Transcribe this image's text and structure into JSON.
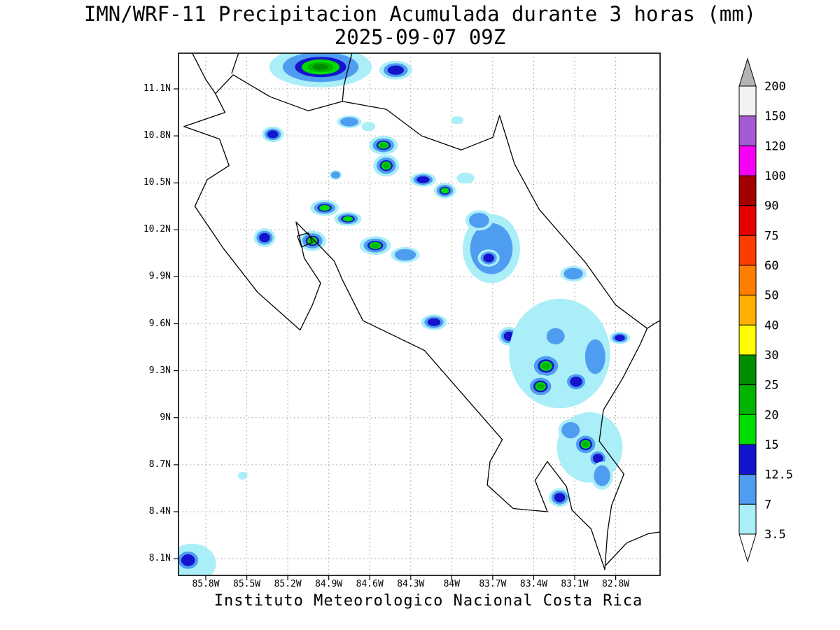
{
  "title": {
    "line1": "IMN/WRF-11 Precipitacion Acumulada durante 3 horas (mm)",
    "line2": "2025-09-07 09Z"
  },
  "caption": "Instituto Meteorologico Nacional Costa Rica",
  "axes": {
    "lat_ticks": [
      "11.1N",
      "10.8N",
      "10.5N",
      "10.2N",
      "9.9N",
      "9.6N",
      "9.3N",
      "9N",
      "8.7N",
      "8.4N",
      "8.1N"
    ],
    "lon_ticks": [
      "85.8W",
      "85.5W",
      "85.2W",
      "84.9W",
      "84.6W",
      "84.3W",
      "84W",
      "83.7W",
      "83.4W",
      "83.1W",
      "82.8W"
    ]
  },
  "colorbar": {
    "labels": [
      "200",
      "150",
      "120",
      "100",
      "90",
      "75",
      "60",
      "50",
      "40",
      "30",
      "25",
      "20",
      "15",
      "12.5",
      "7",
      "3.5"
    ],
    "band_colors_top_to_bottom": [
      "#f2f2f2",
      "#a45ad2",
      "#f500f5",
      "#a50000",
      "#e60000",
      "#ff3c00",
      "#ff7d00",
      "#ffaf00",
      "#ffff00",
      "#008c00",
      "#00b400",
      "#00dc00",
      "#1414cd",
      "#4f9df0",
      "#aaeef8"
    ],
    "over_arrow_color": "#b4b4b4",
    "under_arrow_color": "#ffffff"
  },
  "chart_data": {
    "type": "heatmap",
    "subtype": "precipitation-map",
    "region": "Costa Rica",
    "title": "IMN/WRF-11 Precipitacion Acumulada durante 3 horas (mm)",
    "valid_time": "2025-09-07 09Z",
    "units": "mm",
    "accumulation_hours": 3,
    "grid": "dotted",
    "legend_position": "right",
    "lon_range": [
      -86.0,
      -82.475
    ],
    "lat_range": [
      7.993,
      11.328
    ],
    "lat_tick_values": [
      11.1,
      10.8,
      10.5,
      10.2,
      9.9,
      9.6,
      9.3,
      9.0,
      8.7,
      8.4,
      8.1
    ],
    "lon_tick_values": [
      -85.8,
      -85.5,
      -85.2,
      -84.9,
      -84.6,
      -84.3,
      -84.0,
      -83.7,
      -83.4,
      -83.1,
      -82.8
    ],
    "levels_mm": [
      3.5,
      7,
      12.5,
      15,
      20,
      25,
      30,
      40,
      50,
      60,
      75,
      90,
      100,
      120,
      150,
      200
    ],
    "level_colors": {
      "3.5": "#aaeef8",
      "7": "#4f9df0",
      "12.5": "#1414cd",
      "15": "#00dc00",
      "20": "#00b400",
      "25": "#008c00",
      "30": "#ffff00",
      "40": "#ffaf00",
      "50": "#ff7d00",
      "60": "#ff3c00",
      "75": "#e60000",
      "90": "#a50000",
      "100": "#f500f5",
      "120": "#a45ad2",
      "150": "#f2f2f2",
      "200": "#b4b4b4"
    },
    "precip_cells": [
      {
        "lon": -84.96,
        "lat": 11.24,
        "w": 0.75,
        "h": 0.26,
        "max": 25
      },
      {
        "lon": -84.41,
        "lat": 11.22,
        "w": 0.24,
        "h": 0.12,
        "max": 14
      },
      {
        "lon": -85.31,
        "lat": 10.81,
        "w": 0.16,
        "h": 0.1,
        "max": 14
      },
      {
        "lon": -84.75,
        "lat": 10.89,
        "w": 0.18,
        "h": 0.08,
        "max": 8
      },
      {
        "lon": -84.61,
        "lat": 10.86,
        "w": 0.1,
        "h": 0.06,
        "max": 5
      },
      {
        "lon": -84.5,
        "lat": 10.74,
        "w": 0.21,
        "h": 0.12,
        "max": 20
      },
      {
        "lon": -84.48,
        "lat": 10.61,
        "w": 0.19,
        "h": 0.14,
        "max": 22
      },
      {
        "lon": -84.85,
        "lat": 10.55,
        "w": 0.09,
        "h": 0.06,
        "max": 8
      },
      {
        "lon": -84.21,
        "lat": 10.52,
        "w": 0.19,
        "h": 0.09,
        "max": 14
      },
      {
        "lon": -84.05,
        "lat": 10.45,
        "w": 0.16,
        "h": 0.1,
        "max": 18
      },
      {
        "lon": -83.9,
        "lat": 10.53,
        "w": 0.13,
        "h": 0.07,
        "max": 6
      },
      {
        "lon": -84.93,
        "lat": 10.34,
        "w": 0.21,
        "h": 0.1,
        "max": 18
      },
      {
        "lon": -84.76,
        "lat": 10.27,
        "w": 0.2,
        "h": 0.09,
        "max": 18
      },
      {
        "lon": -85.37,
        "lat": 10.15,
        "w": 0.16,
        "h": 0.12,
        "max": 13
      },
      {
        "lon": -85.02,
        "lat": 10.13,
        "w": 0.2,
        "h": 0.13,
        "max": 20
      },
      {
        "lon": -84.56,
        "lat": 10.1,
        "w": 0.23,
        "h": 0.12,
        "max": 20
      },
      {
        "lon": -84.34,
        "lat": 10.04,
        "w": 0.21,
        "h": 0.1,
        "max": 10
      },
      {
        "lon": -83.71,
        "lat": 10.08,
        "w": 0.42,
        "h": 0.44,
        "max": 10
      },
      {
        "lon": -83.73,
        "lat": 10.02,
        "w": 0.16,
        "h": 0.11,
        "max": 14
      },
      {
        "lon": -83.8,
        "lat": 10.26,
        "w": 0.2,
        "h": 0.13,
        "max": 8
      },
      {
        "lon": -83.11,
        "lat": 9.92,
        "w": 0.19,
        "h": 0.1,
        "max": 9
      },
      {
        "lon": -84.13,
        "lat": 9.61,
        "w": 0.19,
        "h": 0.1,
        "max": 14
      },
      {
        "lon": -83.58,
        "lat": 9.52,
        "w": 0.16,
        "h": 0.12,
        "max": 14
      },
      {
        "lon": -82.77,
        "lat": 9.51,
        "w": 0.15,
        "h": 0.08,
        "max": 13
      },
      {
        "lon": -83.21,
        "lat": 9.41,
        "w": 0.74,
        "h": 0.7,
        "max": 5
      },
      {
        "lon": -83.31,
        "lat": 9.33,
        "w": 0.24,
        "h": 0.17,
        "max": 20
      },
      {
        "lon": -83.35,
        "lat": 9.2,
        "w": 0.21,
        "h": 0.15,
        "max": 22
      },
      {
        "lon": -83.09,
        "lat": 9.23,
        "w": 0.18,
        "h": 0.13,
        "max": 14
      },
      {
        "lon": -83.24,
        "lat": 9.52,
        "w": 0.18,
        "h": 0.14,
        "max": 10
      },
      {
        "lon": -82.95,
        "lat": 9.39,
        "w": 0.2,
        "h": 0.3,
        "max": 8
      },
      {
        "lon": -82.99,
        "lat": 8.81,
        "w": 0.48,
        "h": 0.45,
        "max": 5
      },
      {
        "lon": -83.02,
        "lat": 8.83,
        "w": 0.19,
        "h": 0.15,
        "max": 22
      },
      {
        "lon": -82.93,
        "lat": 8.74,
        "w": 0.15,
        "h": 0.12,
        "max": 14
      },
      {
        "lon": -83.13,
        "lat": 8.92,
        "w": 0.18,
        "h": 0.14,
        "max": 10
      },
      {
        "lon": -82.9,
        "lat": 8.63,
        "w": 0.16,
        "h": 0.18,
        "max": 8
      },
      {
        "lon": -83.21,
        "lat": 8.49,
        "w": 0.16,
        "h": 0.12,
        "max": 14
      },
      {
        "lon": -85.9,
        "lat": 8.07,
        "w": 0.35,
        "h": 0.25,
        "max": 5
      },
      {
        "lon": -85.93,
        "lat": 8.09,
        "w": 0.2,
        "h": 0.15,
        "max": 14
      },
      {
        "lon": -85.53,
        "lat": 8.63,
        "w": 0.07,
        "h": 0.05,
        "max": 4
      },
      {
        "lon": -83.96,
        "lat": 10.9,
        "w": 0.09,
        "h": 0.05,
        "max": 4
      }
    ],
    "coastlines": [
      {
        "name": "costa-rica",
        "closed": true,
        "points": [
          [
            -85.73,
            11.07
          ],
          [
            -85.6,
            11.19
          ],
          [
            -85.33,
            11.05
          ],
          [
            -85.05,
            10.96
          ],
          [
            -84.8,
            11.02
          ],
          [
            -84.48,
            10.97
          ],
          [
            -84.22,
            10.8
          ],
          [
            -83.93,
            10.71
          ],
          [
            -83.7,
            10.79
          ],
          [
            -83.65,
            10.93
          ],
          [
            -83.54,
            10.62
          ],
          [
            -83.36,
            10.33
          ],
          [
            -83.1,
            10.07
          ],
          [
            -83.02,
            9.99
          ],
          [
            -82.8,
            9.72
          ],
          [
            -82.57,
            9.57
          ],
          [
            -82.62,
            9.47
          ],
          [
            -82.75,
            9.25
          ],
          [
            -82.89,
            9.05
          ],
          [
            -82.92,
            8.85
          ],
          [
            -82.74,
            8.64
          ],
          [
            -82.83,
            8.44
          ],
          [
            -82.86,
            8.27
          ],
          [
            -82.88,
            8.03
          ],
          [
            -82.98,
            8.29
          ],
          [
            -83.12,
            8.41
          ],
          [
            -83.16,
            8.56
          ],
          [
            -83.3,
            8.72
          ],
          [
            -83.39,
            8.6
          ],
          [
            -83.3,
            8.4
          ],
          [
            -83.55,
            8.42
          ],
          [
            -83.74,
            8.57
          ],
          [
            -83.72,
            8.72
          ],
          [
            -83.63,
            8.86
          ],
          [
            -83.89,
            9.12
          ],
          [
            -84.2,
            9.43
          ],
          [
            -84.65,
            9.62
          ],
          [
            -84.8,
            9.88
          ],
          [
            -84.86,
            10.0
          ],
          [
            -84.97,
            10.1
          ],
          [
            -85.14,
            10.25
          ],
          [
            -85.08,
            10.02
          ],
          [
            -84.96,
            9.86
          ],
          [
            -85.02,
            9.72
          ],
          [
            -85.11,
            9.56
          ],
          [
            -85.42,
            9.8
          ],
          [
            -85.67,
            10.08
          ],
          [
            -85.88,
            10.35
          ],
          [
            -85.79,
            10.52
          ],
          [
            -85.63,
            10.61
          ],
          [
            -85.7,
            10.78
          ],
          [
            -85.96,
            10.86
          ],
          [
            -85.66,
            10.95
          ]
        ]
      },
      {
        "name": "nicaragua-pacific-coast",
        "closed": false,
        "points": [
          [
            -85.9,
            11.33
          ],
          [
            -85.8,
            11.16
          ],
          [
            -85.73,
            11.07
          ]
        ]
      },
      {
        "name": "lake-nicaragua-shore-west",
        "closed": false,
        "points": [
          [
            -85.56,
            11.33
          ],
          [
            -85.61,
            11.2
          ]
        ]
      },
      {
        "name": "lake-nicaragua-shore-east",
        "closed": false,
        "points": [
          [
            -84.73,
            11.33
          ],
          [
            -84.79,
            11.12
          ],
          [
            -84.8,
            11.02
          ]
        ]
      },
      {
        "name": "panama-caribbean-coast",
        "closed": false,
        "points": [
          [
            -82.57,
            9.57
          ],
          [
            -82.5,
            9.61
          ],
          [
            -82.475,
            9.62
          ]
        ]
      },
      {
        "name": "panama-pacific-coast",
        "closed": false,
        "points": [
          [
            -82.87,
            8.06
          ],
          [
            -82.72,
            8.2
          ],
          [
            -82.56,
            8.26
          ],
          [
            -82.475,
            8.27
          ]
        ]
      },
      {
        "name": "isla-chira",
        "closed": true,
        "points": [
          [
            -85.13,
            10.16
          ],
          [
            -85.05,
            10.18
          ],
          [
            -85.02,
            10.12
          ],
          [
            -85.1,
            10.09
          ]
        ]
      }
    ]
  }
}
